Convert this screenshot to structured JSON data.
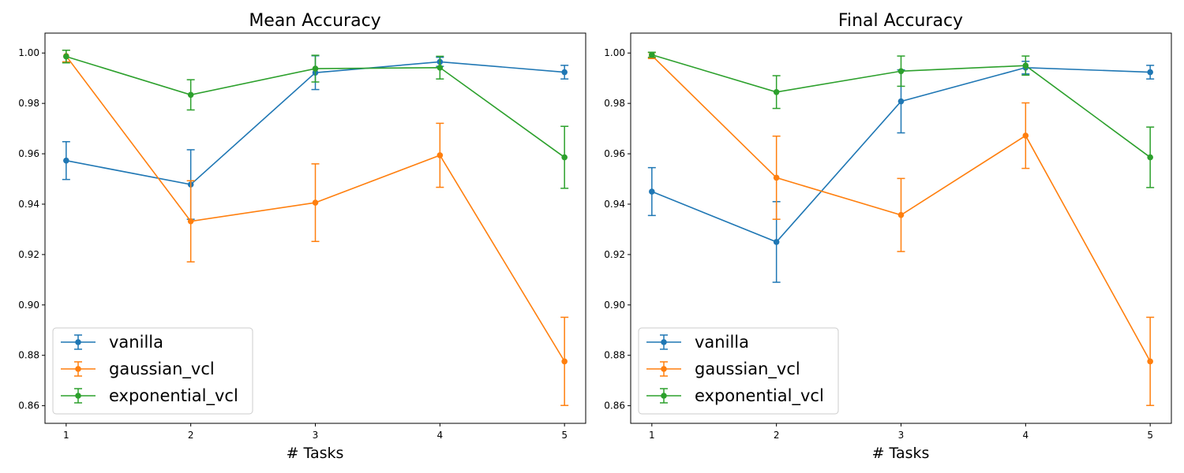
{
  "colors": {
    "vanilla": "#1f77b4",
    "gaussian_vcl": "#ff7f0e",
    "exponential_vcl": "#2ca02c"
  },
  "chart_data": [
    {
      "type": "line",
      "title": "Mean Accuracy",
      "xlabel": "# Tasks",
      "ylabel": "",
      "x": [
        1,
        2,
        3,
        4,
        5
      ],
      "xticks": [
        "1",
        "2",
        "3",
        "4",
        "5"
      ],
      "yticks": [
        "0.86",
        "0.88",
        "0.90",
        "0.92",
        "0.94",
        "0.96",
        "0.98",
        "1.00"
      ],
      "xlim": [
        0.83,
        5.17
      ],
      "ylim": [
        0.853,
        1.0079
      ],
      "legend_position": "lower-left",
      "series": [
        {
          "name": "vanilla",
          "values": [
            0.9573,
            0.9478,
            0.9922,
            0.9965,
            0.9924
          ],
          "errors": [
            0.0075,
            0.0138,
            0.0067,
            0.0018,
            0.0027
          ]
        },
        {
          "name": "gaussian_vcl",
          "values": [
            0.9988,
            0.9332,
            0.9406,
            0.9594,
            0.8776
          ],
          "errors": [
            0.0023,
            0.0161,
            0.0154,
            0.0127,
            0.0175
          ]
        },
        {
          "name": "exponential_vcl",
          "values": [
            0.9986,
            0.9834,
            0.9938,
            0.9942,
            0.9586
          ],
          "errors": [
            0.0025,
            0.006,
            0.0053,
            0.0045,
            0.0123
          ]
        }
      ]
    },
    {
      "type": "line",
      "title": "Final Accuracy",
      "xlabel": "# Tasks",
      "ylabel": "",
      "x": [
        1,
        2,
        3,
        4,
        5
      ],
      "xticks": [
        "1",
        "2",
        "3",
        "4",
        "5"
      ],
      "yticks": [
        "0.86",
        "0.88",
        "0.90",
        "0.92",
        "0.94",
        "0.96",
        "0.98",
        "1.00"
      ],
      "xlim": [
        0.83,
        5.17
      ],
      "ylim": [
        0.853,
        1.0079
      ],
      "legend_position": "lower-left",
      "series": [
        {
          "name": "vanilla",
          "values": [
            0.945,
            0.925,
            0.9808,
            0.9942,
            0.9924
          ],
          "errors": [
            0.0095,
            0.016,
            0.0125,
            0.0025,
            0.0027
          ]
        },
        {
          "name": "gaussian_vcl",
          "values": [
            0.999,
            0.9505,
            0.9357,
            0.9672,
            0.8776
          ],
          "errors": [
            0.0012,
            0.0165,
            0.0145,
            0.013,
            0.0175
          ]
        },
        {
          "name": "exponential_vcl",
          "values": [
            0.9993,
            0.9845,
            0.9928,
            0.995,
            0.9586
          ],
          "errors": [
            0.001,
            0.0065,
            0.006,
            0.0038,
            0.012
          ]
        }
      ]
    }
  ]
}
